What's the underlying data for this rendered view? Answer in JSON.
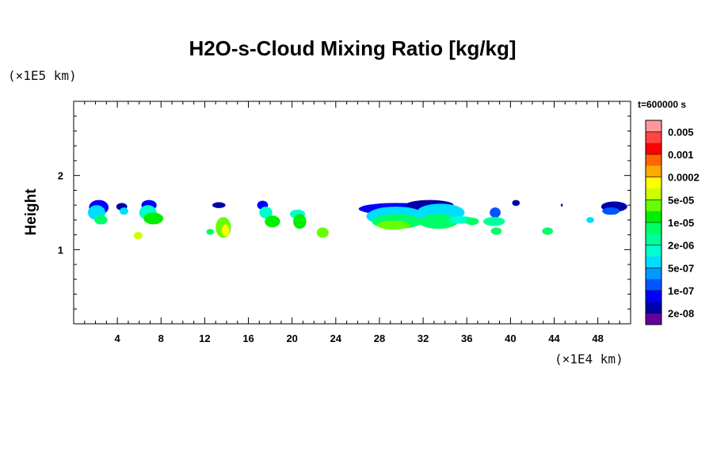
{
  "chart_data": {
    "type": "heatmap",
    "title": "H2O-s-Cloud Mixing Ratio [kg/kg]",
    "ylabel": "Height",
    "xlabel": "",
    "x_unit": "(×1E4 km)",
    "y_unit": "(×1E5 km)",
    "time_label": "t=600000 s",
    "xlim": [
      0,
      51
    ],
    "ylim": [
      0,
      3
    ],
    "x_ticks": [
      4,
      8,
      12,
      16,
      20,
      24,
      28,
      32,
      36,
      40,
      44,
      48
    ],
    "y_ticks": [
      1,
      2
    ],
    "x_minor_step": 1,
    "y_minor_step": 0.2,
    "colorbar": {
      "labels": [
        "0.005",
        "0.001",
        "0.0002",
        "5e-05",
        "1e-05",
        "2e-06",
        "5e-07",
        "1e-07",
        "2e-08"
      ],
      "colors": [
        "#ff9999",
        "#ff4444",
        "#ff0000",
        "#ff6600",
        "#ffaa00",
        "#ffff00",
        "#ccff00",
        "#66ff00",
        "#00ee00",
        "#00ff66",
        "#00ff99",
        "#00ffcc",
        "#00ddff",
        "#0099ff",
        "#0055ff",
        "#0000ff",
        "#0000aa",
        "#660099"
      ]
    },
    "cells": [
      {
        "x": 2.3,
        "y": 1.57,
        "rx": 0.9,
        "ry": 0.1,
        "level": 15
      },
      {
        "x": 2.1,
        "y": 1.5,
        "rx": 0.8,
        "ry": 0.1,
        "level": 12
      },
      {
        "x": 2.5,
        "y": 1.4,
        "rx": 0.6,
        "ry": 0.06,
        "level": 9
      },
      {
        "x": 4.4,
        "y": 1.58,
        "rx": 0.5,
        "ry": 0.05,
        "level": 16
      },
      {
        "x": 4.6,
        "y": 1.52,
        "rx": 0.4,
        "ry": 0.05,
        "level": 12
      },
      {
        "x": 6.9,
        "y": 1.6,
        "rx": 0.7,
        "ry": 0.07,
        "level": 15
      },
      {
        "x": 6.8,
        "y": 1.5,
        "rx": 0.8,
        "ry": 0.1,
        "level": 11
      },
      {
        "x": 7.3,
        "y": 1.42,
        "rx": 0.9,
        "ry": 0.08,
        "level": 8
      },
      {
        "x": 5.9,
        "y": 1.19,
        "rx": 0.4,
        "ry": 0.05,
        "level": 6
      },
      {
        "x": 12.5,
        "y": 1.24,
        "rx": 0.35,
        "ry": 0.04,
        "level": 9
      },
      {
        "x": 13.3,
        "y": 1.6,
        "rx": 0.6,
        "ry": 0.04,
        "level": 16
      },
      {
        "x": 13.7,
        "y": 1.3,
        "rx": 0.7,
        "ry": 0.14,
        "level": 7
      },
      {
        "x": 13.9,
        "y": 1.26,
        "rx": 0.35,
        "ry": 0.08,
        "level": 5
      },
      {
        "x": 17.3,
        "y": 1.6,
        "rx": 0.5,
        "ry": 0.06,
        "level": 15
      },
      {
        "x": 17.6,
        "y": 1.5,
        "rx": 0.6,
        "ry": 0.08,
        "level": 11
      },
      {
        "x": 18.2,
        "y": 1.38,
        "rx": 0.7,
        "ry": 0.08,
        "level": 8
      },
      {
        "x": 20.5,
        "y": 1.48,
        "rx": 0.7,
        "ry": 0.06,
        "level": 11
      },
      {
        "x": 20.7,
        "y": 1.38,
        "rx": 0.6,
        "ry": 0.1,
        "level": 8
      },
      {
        "x": 22.8,
        "y": 1.23,
        "rx": 0.55,
        "ry": 0.07,
        "level": 7
      },
      {
        "x": 29.5,
        "y": 1.55,
        "rx": 3.4,
        "ry": 0.08,
        "level": 15
      },
      {
        "x": 32.6,
        "y": 1.6,
        "rx": 2.2,
        "ry": 0.07,
        "level": 16
      },
      {
        "x": 29.5,
        "y": 1.45,
        "rx": 2.7,
        "ry": 0.13,
        "level": 12
      },
      {
        "x": 33.6,
        "y": 1.5,
        "rx": 2.2,
        "ry": 0.12,
        "level": 12
      },
      {
        "x": 29.6,
        "y": 1.38,
        "rx": 2.3,
        "ry": 0.1,
        "level": 9
      },
      {
        "x": 33.4,
        "y": 1.38,
        "rx": 1.8,
        "ry": 0.1,
        "level": 9
      },
      {
        "x": 29.3,
        "y": 1.33,
        "rx": 1.5,
        "ry": 0.06,
        "level": 7
      },
      {
        "x": 35.5,
        "y": 1.4,
        "rx": 1.2,
        "ry": 0.05,
        "level": 11
      },
      {
        "x": 36.5,
        "y": 1.38,
        "rx": 0.6,
        "ry": 0.05,
        "level": 9
      },
      {
        "x": 38.6,
        "y": 1.5,
        "rx": 0.5,
        "ry": 0.07,
        "level": 14
      },
      {
        "x": 38.5,
        "y": 1.38,
        "rx": 1.0,
        "ry": 0.06,
        "level": 10
      },
      {
        "x": 38.7,
        "y": 1.25,
        "rx": 0.5,
        "ry": 0.05,
        "level": 9
      },
      {
        "x": 40.5,
        "y": 1.63,
        "rx": 0.35,
        "ry": 0.04,
        "level": 16
      },
      {
        "x": 43.4,
        "y": 1.25,
        "rx": 0.5,
        "ry": 0.05,
        "level": 9
      },
      {
        "x": 44.7,
        "y": 1.6,
        "rx": 0.1,
        "ry": 0.02,
        "level": 17
      },
      {
        "x": 49.5,
        "y": 1.58,
        "rx": 1.2,
        "ry": 0.07,
        "level": 16
      },
      {
        "x": 49.2,
        "y": 1.52,
        "rx": 0.8,
        "ry": 0.05,
        "level": 14
      },
      {
        "x": 47.3,
        "y": 1.4,
        "rx": 0.35,
        "ry": 0.04,
        "level": 12
      }
    ]
  }
}
